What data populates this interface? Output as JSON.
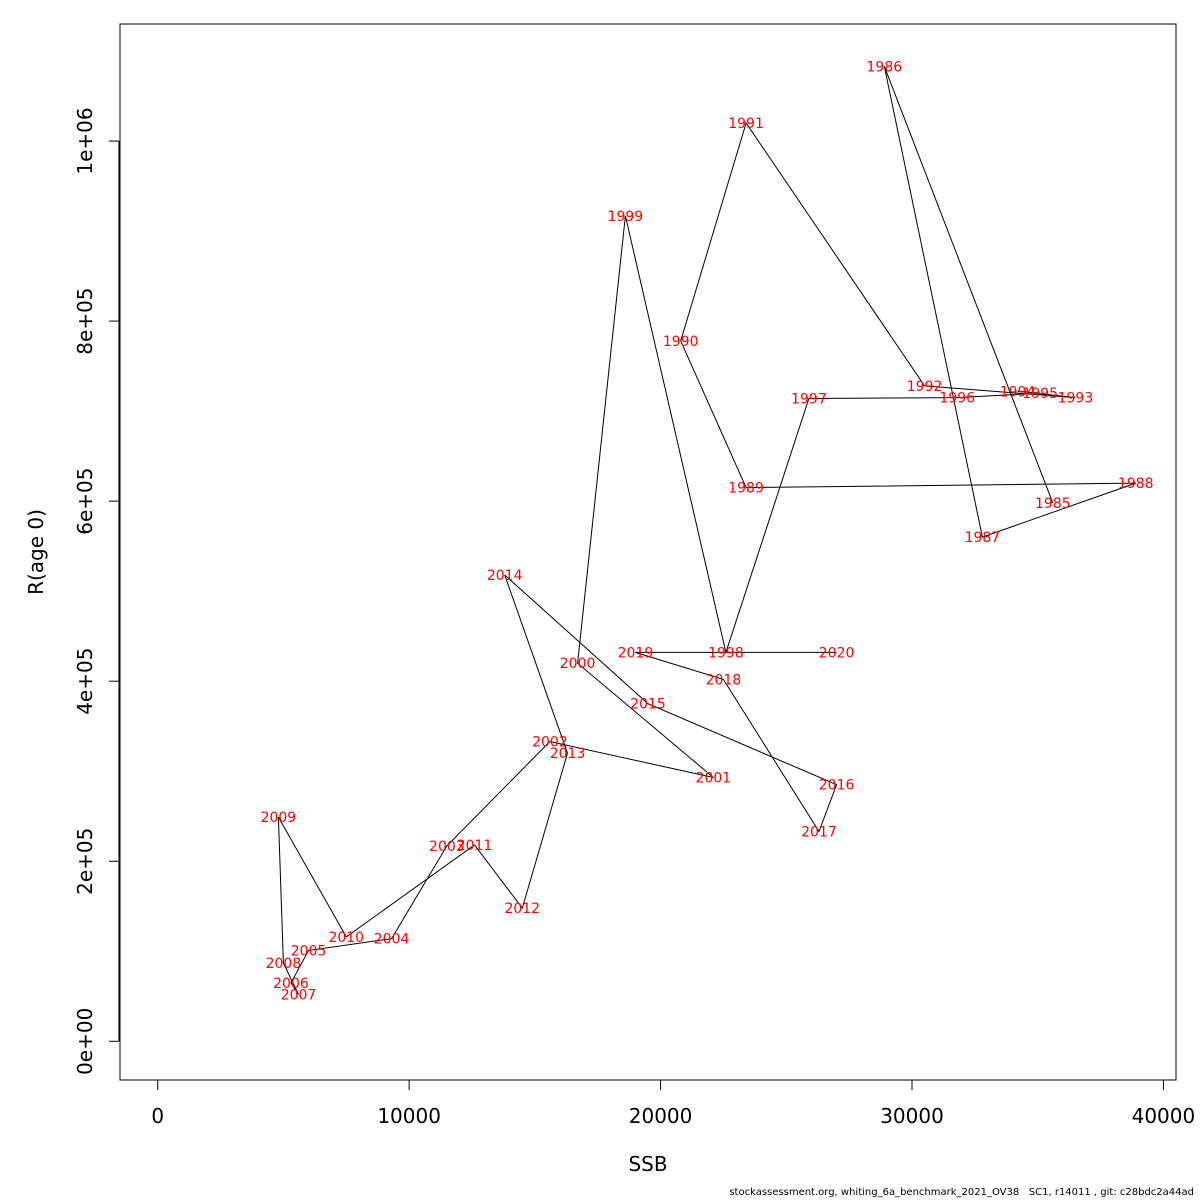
{
  "chart_data": {
    "type": "line",
    "xlabel": "SSB",
    "ylabel": "R(age 0)",
    "xlim": [
      -1500,
      40500
    ],
    "ylim": [
      -43000,
      1130000
    ],
    "x_ticks": [
      {
        "value": 0,
        "label": "0"
      },
      {
        "value": 10000,
        "label": "10000"
      },
      {
        "value": 20000,
        "label": "20000"
      },
      {
        "value": 30000,
        "label": "30000"
      },
      {
        "value": 40000,
        "label": "40000"
      }
    ],
    "y_ticks": [
      {
        "value": 0,
        "label": "0e+00"
      },
      {
        "value": 200000,
        "label": "2e+05"
      },
      {
        "value": 400000,
        "label": "4e+05"
      },
      {
        "value": 600000,
        "label": "6e+05"
      },
      {
        "value": 800000,
        "label": "8e+05"
      },
      {
        "value": 1000000,
        "label": "1e+06"
      }
    ],
    "points": [
      {
        "year": "1985",
        "ssb": 35600,
        "r": 598000
      },
      {
        "year": "1986",
        "ssb": 28900,
        "r": 1083000
      },
      {
        "year": "1987",
        "ssb": 32800,
        "r": 560000
      },
      {
        "year": "1988",
        "ssb": 38900,
        "r": 620000
      },
      {
        "year": "1989",
        "ssb": 23400,
        "r": 615000
      },
      {
        "year": "1990",
        "ssb": 20800,
        "r": 778000
      },
      {
        "year": "1991",
        "ssb": 23400,
        "r": 1020000
      },
      {
        "year": "1992",
        "ssb": 30500,
        "r": 728000
      },
      {
        "year": "1993",
        "ssb": 36500,
        "r": 715000
      },
      {
        "year": "1994",
        "ssb": 34200,
        "r": 722000
      },
      {
        "year": "1995",
        "ssb": 35100,
        "r": 720000
      },
      {
        "year": "1996",
        "ssb": 31800,
        "r": 715000
      },
      {
        "year": "1997",
        "ssb": 25900,
        "r": 714000
      },
      {
        "year": "1998",
        "ssb": 22600,
        "r": 432000
      },
      {
        "year": "1999",
        "ssb": 18600,
        "r": 917000
      },
      {
        "year": "2000",
        "ssb": 16700,
        "r": 420000
      },
      {
        "year": "2001",
        "ssb": 22100,
        "r": 293000
      },
      {
        "year": "2002",
        "ssb": 15600,
        "r": 333000
      },
      {
        "year": "2003",
        "ssb": 11500,
        "r": 217000
      },
      {
        "year": "2004",
        "ssb": 9300,
        "r": 114000
      },
      {
        "year": "2005",
        "ssb": 6000,
        "r": 101000
      },
      {
        "year": "2006",
        "ssb": 5300,
        "r": 65000
      },
      {
        "year": "2007",
        "ssb": 5600,
        "r": 52000
      },
      {
        "year": "2008",
        "ssb": 5000,
        "r": 87000
      },
      {
        "year": "2009",
        "ssb": 4800,
        "r": 249000
      },
      {
        "year": "2010",
        "ssb": 7500,
        "r": 116000
      },
      {
        "year": "2011",
        "ssb": 12600,
        "r": 218000
      },
      {
        "year": "2012",
        "ssb": 14500,
        "r": 148000
      },
      {
        "year": "2013",
        "ssb": 16300,
        "r": 320000
      },
      {
        "year": "2014",
        "ssb": 13800,
        "r": 518000
      },
      {
        "year": "2015",
        "ssb": 19500,
        "r": 375000
      },
      {
        "year": "2016",
        "ssb": 27000,
        "r": 285000
      },
      {
        "year": "2017",
        "ssb": 26300,
        "r": 233000
      },
      {
        "year": "2018",
        "ssb": 22500,
        "r": 402000
      },
      {
        "year": "2019",
        "ssb": 19000,
        "r": 432000
      },
      {
        "year": "2020",
        "ssb": 27000,
        "r": 432000
      }
    ],
    "grid": false,
    "line_color": "#000000",
    "label_color": "#ff0000"
  },
  "footer": "stockassessment.org, whiting_6a_benchmark_2021_OV38   SC1, r14011 , git: c28bdc2a44ad"
}
